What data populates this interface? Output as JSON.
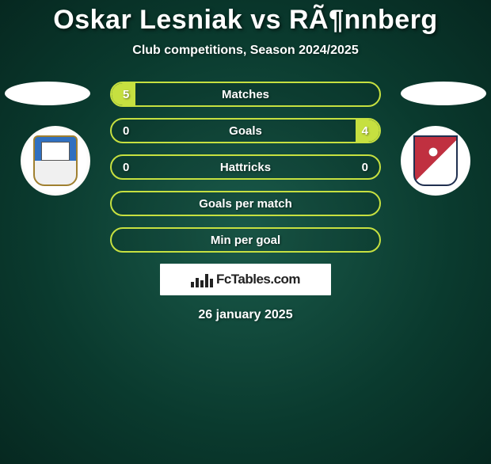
{
  "title": "Oskar Lesniak vs RÃ¶nnberg",
  "subtitle": "Club competitions, Season 2024/2025",
  "date": "26 january 2025",
  "brand": {
    "text": "FcTables.com"
  },
  "colors": {
    "accent": "#c6e040",
    "text": "#ffffff",
    "background_center": "#1a5a4a",
    "background_edge": "#062820",
    "brand_box": "#ffffff",
    "brand_text": "#222222"
  },
  "rows": [
    {
      "label": "Matches",
      "left_val": "5",
      "right_val": "",
      "left_fill_pct": 9,
      "right_fill_pct": 0
    },
    {
      "label": "Goals",
      "left_val": "0",
      "right_val": "4",
      "left_fill_pct": 0,
      "right_fill_pct": 9
    },
    {
      "label": "Hattricks",
      "left_val": "0",
      "right_val": "0",
      "left_fill_pct": 0,
      "right_fill_pct": 0
    },
    {
      "label": "Goals per match",
      "left_val": "",
      "right_val": "",
      "left_fill_pct": 0,
      "right_fill_pct": 0
    },
    {
      "label": "Min per goal",
      "left_val": "",
      "right_val": "",
      "left_fill_pct": 0,
      "right_fill_pct": 0
    }
  ]
}
